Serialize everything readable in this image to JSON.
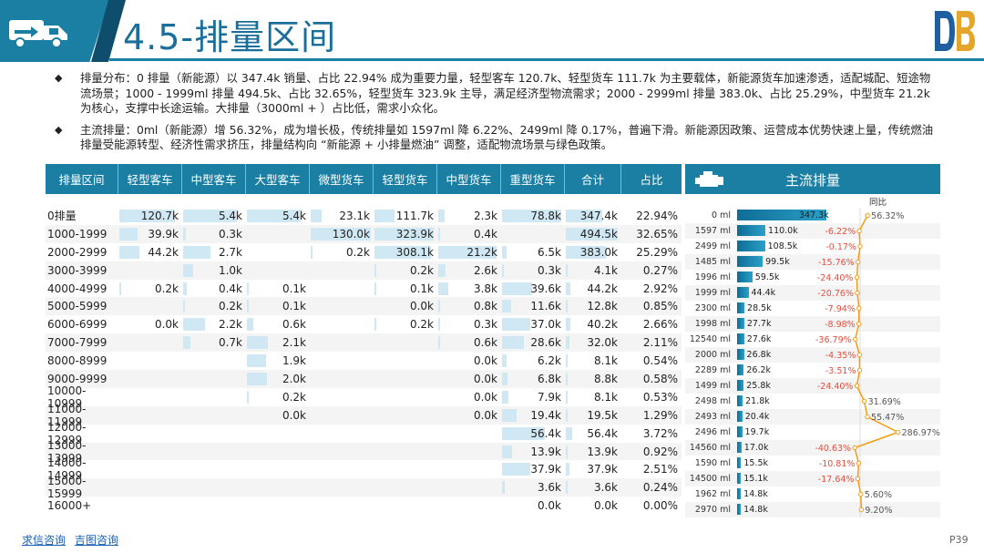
{
  "header": {
    "title": "4.5-排量区间"
  },
  "bullets": [
    "排量分布：0 排量（新能源）以 347.4k 销量、占比 22.94% 成为重要力量，轻型客车 120.7k、轻型货车 111.7k 为主要载体，新能源货车加速渗透，适配城配、短途物流场景；1000 - 1999ml 排量 494.5k、占比 32.65%，轻型货车 323.9k 主导，满足经济型物流需求；2000 - 2999ml 排量 383.0k、占比 25.29%，中型货车 21.2k 为核心，支撑中长途运输。大排量（3000ml + ）占比低，需求小众化。",
    "主流排量：0ml（新能源）增 56.32%，成为增长极，传统排量如 1597ml 降 6.22%、2499ml 降 0.17%，普遍下滑。新能源因政策、运营成本优势快速上量，传统燃油排量受能源转型、经济性需求挤压，排量结构向 “新能源 + 小排量燃油” 调整，适配物流场景与绿色政策。"
  ],
  "table": {
    "columns": [
      "排量区间",
      "轻型客车",
      "中型客车",
      "大型客车",
      "微型货车",
      "轻型货车",
      "中型货车",
      "重型货车",
      "合计",
      "占比"
    ],
    "rows": [
      [
        "0排量",
        "120.7k",
        "5.4k",
        "5.4k",
        "23.1k",
        "111.7k",
        "2.3k",
        "78.8k",
        "347.4k",
        "22.94%"
      ],
      [
        "1000-1999",
        "39.9k",
        "0.3k",
        "",
        "130.0k",
        "323.9k",
        "0.4k",
        "",
        "494.5k",
        "32.65%"
      ],
      [
        "2000-2999",
        "44.2k",
        "2.7k",
        "",
        "0.2k",
        "308.1k",
        "21.2k",
        "6.5k",
        "383.0k",
        "25.29%"
      ],
      [
        "3000-3999",
        "",
        "1.0k",
        "",
        "",
        "0.2k",
        "2.6k",
        "0.3k",
        "4.1k",
        "0.27%"
      ],
      [
        "4000-4999",
        "0.2k",
        "0.4k",
        "0.1k",
        "",
        "0.1k",
        "3.8k",
        "39.6k",
        "44.2k",
        "2.92%"
      ],
      [
        "5000-5999",
        "",
        "0.2k",
        "0.1k",
        "",
        "0.0k",
        "0.8k",
        "11.6k",
        "12.8k",
        "0.85%"
      ],
      [
        "6000-6999",
        "0.0k",
        "2.2k",
        "0.6k",
        "",
        "0.2k",
        "0.3k",
        "37.0k",
        "40.2k",
        "2.66%"
      ],
      [
        "7000-7999",
        "",
        "0.7k",
        "2.1k",
        "",
        "",
        "0.6k",
        "28.6k",
        "32.0k",
        "2.11%"
      ],
      [
        "8000-8999",
        "",
        "",
        "1.9k",
        "",
        "",
        "0.0k",
        "6.2k",
        "8.1k",
        "0.54%"
      ],
      [
        "9000-9999",
        "",
        "",
        "2.0k",
        "",
        "",
        "0.0k",
        "6.8k",
        "8.8k",
        "0.58%"
      ],
      [
        "10000-10999",
        "",
        "",
        "0.2k",
        "",
        "",
        "0.0k",
        "7.9k",
        "8.1k",
        "0.53%"
      ],
      [
        "11000-11999",
        "",
        "",
        "0.0k",
        "",
        "",
        "0.0k",
        "19.4k",
        "19.5k",
        "1.29%"
      ],
      [
        "12000-12999",
        "",
        "",
        "",
        "",
        "",
        "",
        "56.4k",
        "56.4k",
        "3.72%"
      ],
      [
        "13000-13999",
        "",
        "",
        "",
        "",
        "",
        "",
        "13.9k",
        "13.9k",
        "0.92%"
      ],
      [
        "14000-14999",
        "",
        "",
        "",
        "",
        "",
        "",
        "37.9k",
        "37.9k",
        "2.51%"
      ],
      [
        "15000-15999",
        "",
        "",
        "",
        "",
        "",
        "",
        "3.6k",
        "3.6k",
        "0.24%"
      ],
      [
        "16000+",
        "",
        "",
        "",
        "",
        "",
        "",
        "0.0k",
        "0.0k",
        "0.00%"
      ]
    ],
    "bar_values": [
      [
        120.7,
        5.4,
        5.4,
        23.1,
        111.7,
        2.3,
        78.8,
        347.4
      ],
      [
        39.9,
        0.3,
        0,
        130.0,
        323.9,
        0.4,
        0,
        494.5
      ],
      [
        44.2,
        2.7,
        0,
        0.2,
        308.1,
        21.2,
        6.5,
        383.0
      ],
      [
        0,
        1.0,
        0,
        0,
        0.2,
        2.6,
        0.3,
        4.1
      ],
      [
        0.2,
        0.4,
        0.1,
        0,
        0.1,
        3.8,
        39.6,
        44.2
      ],
      [
        0,
        0.2,
        0.1,
        0,
        0.0,
        0.8,
        11.6,
        12.8
      ],
      [
        0.0,
        2.2,
        0.6,
        0,
        0.2,
        0.3,
        37.0,
        40.2
      ],
      [
        0,
        0.7,
        2.1,
        0,
        0,
        0.6,
        28.6,
        32.0
      ],
      [
        0,
        0,
        1.9,
        0,
        0,
        0.0,
        6.2,
        8.1
      ],
      [
        0,
        0,
        2.0,
        0,
        0,
        0.0,
        6.8,
        8.8
      ],
      [
        0,
        0,
        0.2,
        0,
        0,
        0.0,
        7.9,
        8.1
      ],
      [
        0,
        0,
        0.0,
        0,
        0,
        0.0,
        19.4,
        19.5
      ],
      [
        0,
        0,
        0,
        0,
        0,
        0,
        56.4,
        56.4
      ],
      [
        0,
        0,
        0,
        0,
        0,
        0,
        13.9,
        13.9
      ],
      [
        0,
        0,
        0,
        0,
        0,
        0,
        37.9,
        37.9
      ],
      [
        0,
        0,
        0,
        0,
        0,
        0,
        3.6,
        3.6
      ],
      [
        0,
        0,
        0,
        0,
        0,
        0,
        0.0,
        0.0
      ]
    ]
  },
  "mainstream": {
    "title": "主流排量",
    "yoy_label": "同比",
    "positive_color": "#f39c12",
    "negative_color": "#e74c3c",
    "bar_color": "#1a7fa3"
  },
  "chart_data": {
    "type": "bar",
    "title": "主流排量",
    "categories": [
      "0 ml",
      "1597 ml",
      "2499 ml",
      "1485 ml",
      "1996 ml",
      "1999 ml",
      "2300 ml",
      "1998 ml",
      "12540 ml",
      "2000 ml",
      "2289 ml",
      "1499 ml",
      "2498 ml",
      "2493 ml",
      "2496 ml",
      "14560 ml",
      "1590 ml",
      "14500 ml",
      "1962 ml",
      "2970 ml"
    ],
    "values": [
      347.3,
      110.0,
      108.5,
      99.5,
      59.5,
      44.4,
      28.5,
      27.7,
      27.6,
      26.8,
      26.2,
      25.8,
      21.8,
      20.4,
      19.7,
      17.0,
      15.5,
      15.1,
      14.8,
      14.8
    ],
    "value_labels": [
      "347.3k",
      "110.0k",
      "108.5k",
      "99.5k",
      "59.5k",
      "44.4k",
      "28.5k",
      "27.7k",
      "27.6k",
      "26.8k",
      "26.2k",
      "25.8k",
      "21.8k",
      "20.4k",
      "19.7k",
      "17.0k",
      "15.5k",
      "15.1k",
      "14.8k",
      "14.8k"
    ],
    "yoy": [
      56.32,
      -6.22,
      -0.17,
      -15.76,
      -24.4,
      -20.76,
      -7.94,
      -8.98,
      -36.79,
      -4.35,
      -3.51,
      -24.4,
      31.69,
      55.47,
      286.97,
      -40.63,
      -10.81,
      -17.64,
      5.6,
      9.2
    ],
    "yoy_labels": [
      "56.32%",
      "-6.22%",
      "-0.17%",
      "-15.76%",
      "-24.40%",
      "-20.76%",
      "-7.94%",
      "-8.98%",
      "-36.79%",
      "-4.35%",
      "-3.51%",
      "-24.40%",
      "31.69%",
      "55.47%",
      "286.97%",
      "-40.63%",
      "-10.81%",
      "-17.64%",
      "5.60%",
      "9.20%"
    ],
    "series": [
      {
        "name": "销量",
        "unit": "k"
      },
      {
        "name": "同比",
        "unit": "%"
      }
    ]
  },
  "footer": {
    "link1": "求信咨询",
    "link2": "吉图咨询",
    "page": "P39"
  }
}
